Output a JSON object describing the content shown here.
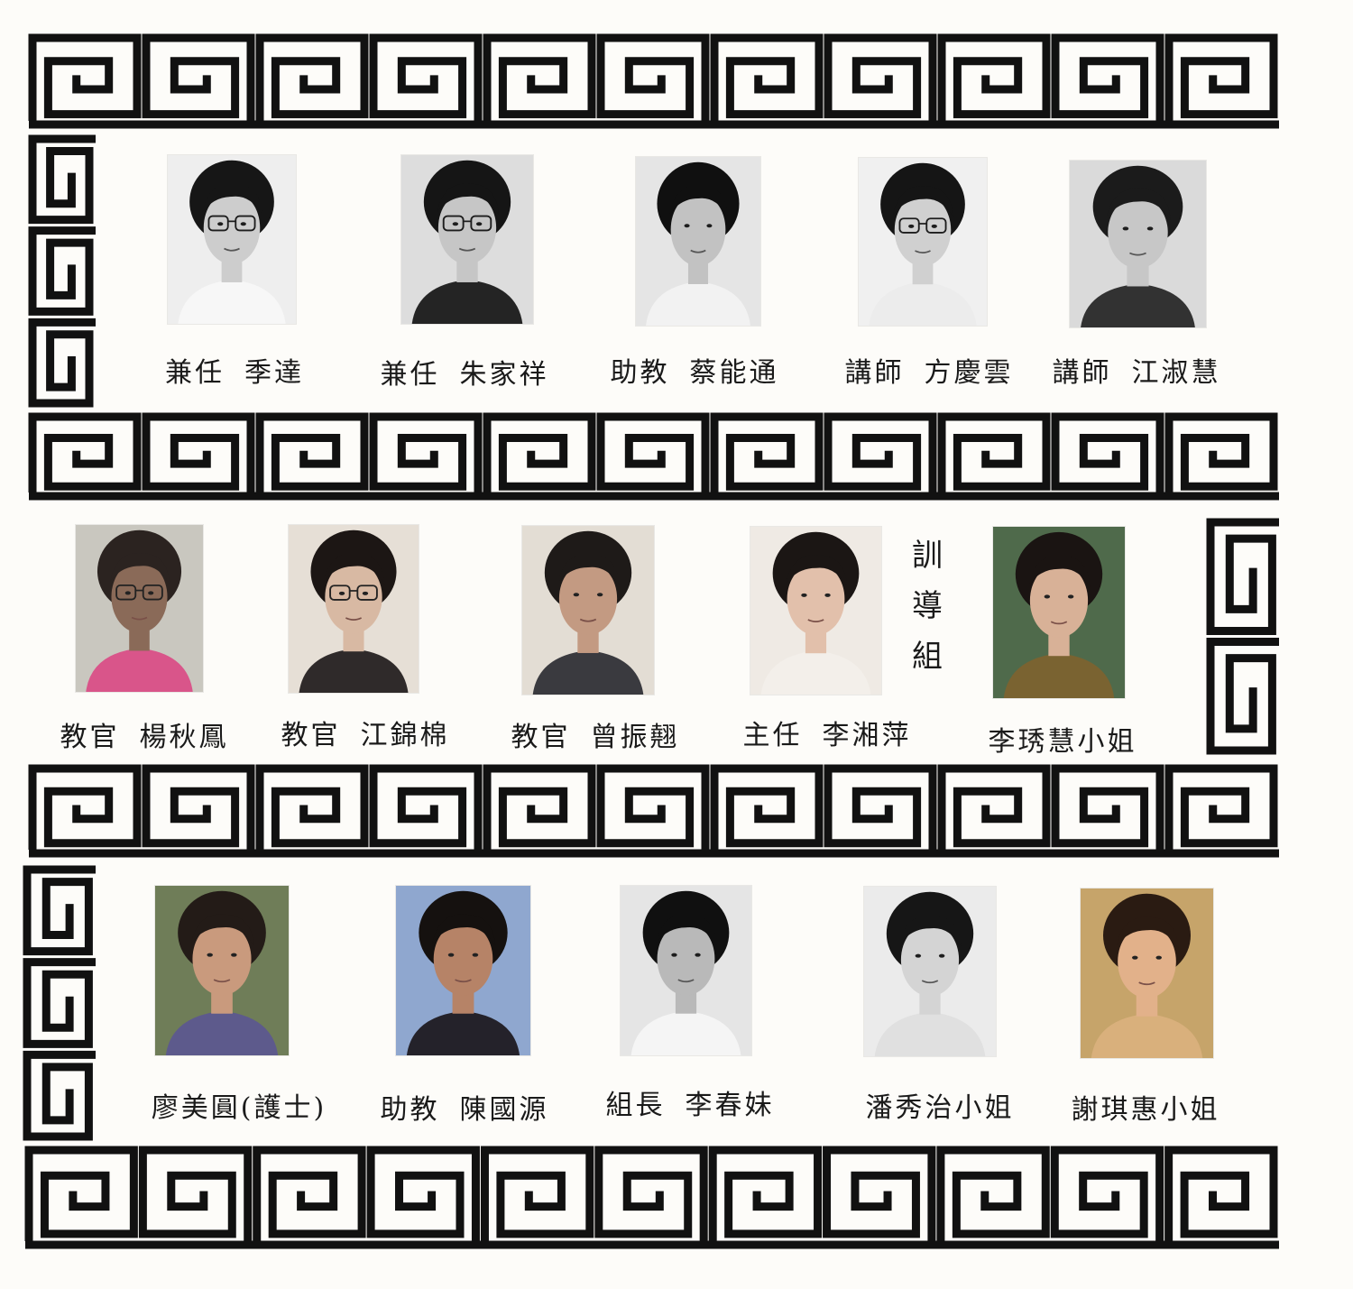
{
  "group_title": [
    "訓",
    "導",
    "組"
  ],
  "rows": [
    [
      {
        "role": "兼任",
        "name": "季達",
        "tone": "bw",
        "bg": "#ebe9e3",
        "hair": "#1d1b1a",
        "skin": "#cfc9c0",
        "cloth": "#f2f1ee",
        "glasses": true
      },
      {
        "role": "兼任",
        "name": "朱家祥",
        "tone": "bw",
        "bg": "#dcd8d0",
        "hair": "#1b1a19",
        "skin": "#c9c2b8",
        "cloth": "#2a2826",
        "glasses": true
      },
      {
        "role": "助教",
        "name": "蔡能通",
        "tone": "bw",
        "bg": "#e3e0d8",
        "hair": "#161514",
        "skin": "#c6beb2",
        "cloth": "#eeece8",
        "glasses": false
      },
      {
        "role": "講師",
        "name": "方慶雲",
        "tone": "bw",
        "bg": "#ecebe7",
        "hair": "#1b1a19",
        "skin": "#d2ccc3",
        "cloth": "#e9e7e2",
        "glasses": true
      },
      {
        "role": "講師",
        "name": "江淑慧",
        "tone": "bw",
        "bg": "#d9d6cf",
        "hair": "#241f1c",
        "skin": "#cbc3b8",
        "cloth": "#3a3532",
        "glasses": false
      }
    ],
    [
      {
        "role": "教官",
        "name": "楊秋鳳",
        "tone": "color",
        "bg": "#c9c7bf",
        "hair": "#2b2320",
        "skin": "#8a6a58",
        "cloth": "#d9558a",
        "glasses": true
      },
      {
        "role": "教官",
        "name": "江錦棉",
        "tone": "color",
        "bg": "#e6dfd6",
        "hair": "#1c1614",
        "skin": "#d8b9a3",
        "cloth": "#2f2a2a",
        "glasses": true
      },
      {
        "role": "教官",
        "name": "曾振翹",
        "tone": "color",
        "bg": "#e3ddd4",
        "hair": "#1e1a18",
        "skin": "#c39a82",
        "cloth": "#3a3a3f",
        "glasses": false
      },
      {
        "role": "主任",
        "name": "李湘萍",
        "tone": "color",
        "bg": "#efeae4",
        "hair": "#1b1614",
        "skin": "#e2c0ab",
        "cloth": "#f3efea",
        "glasses": false
      },
      {
        "role": "",
        "name": "李琇慧小姐",
        "tone": "color",
        "bg": "#4f6a4b",
        "hair": "#1a1412",
        "skin": "#d8b197",
        "cloth": "#7a6331",
        "glasses": false
      }
    ],
    [
      {
        "role": "",
        "name": "廖美圓(護士)",
        "tone": "color",
        "bg": "#6f7d58",
        "hair": "#231b17",
        "skin": "#c99a7d",
        "cloth": "#5d5a8c",
        "glasses": false
      },
      {
        "role": "助教",
        "name": "陳國源",
        "tone": "color",
        "bg": "#8fa7cf",
        "hair": "#15110f",
        "skin": "#b68367",
        "cloth": "#24222a",
        "glasses": false
      },
      {
        "role": "組長",
        "name": "李春妹",
        "tone": "bw",
        "bg": "#e3e0da",
        "hair": "#171514",
        "skin": "#bdb5ab",
        "cloth": "#f1efeb",
        "glasses": false
      },
      {
        "role": "",
        "name": "潘秀治小姐",
        "tone": "bw",
        "bg": "#e8e6e1",
        "hair": "#1d1b1a",
        "skin": "#d5cfc7",
        "cloth": "#dedbd4",
        "glasses": false
      },
      {
        "role": "",
        "name": "謝琪惠小姐",
        "tone": "color",
        "bg": "#c6a46a",
        "hair": "#2a1b12",
        "skin": "#e2b18a",
        "cloth": "#d9b07c",
        "glasses": false
      }
    ]
  ]
}
